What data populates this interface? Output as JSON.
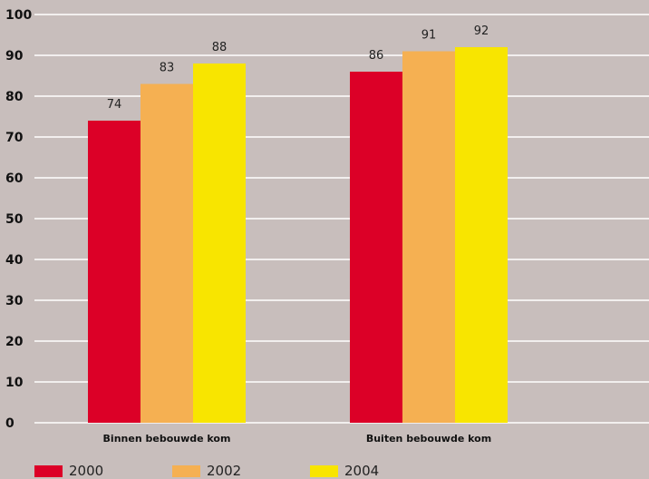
{
  "chart_data": {
    "type": "bar",
    "categories": [
      "Binnen bebouwde kom",
      "Buiten bebouwde kom"
    ],
    "series": [
      {
        "name": "2000",
        "values": [
          74,
          86
        ],
        "color": "#dc0027"
      },
      {
        "name": "2002",
        "values": [
          83,
          91
        ],
        "color": "#f5b052"
      },
      {
        "name": "2004",
        "values": [
          88,
          92
        ],
        "color": "#f8e500"
      }
    ],
    "ylim": [
      0,
      100
    ],
    "yticks": [
      "0",
      "10",
      "20",
      "30",
      "40",
      "50",
      "60",
      "70",
      "80",
      "90",
      "100"
    ],
    "title": "",
    "xlabel": "",
    "ylabel": "",
    "grid": true,
    "legend_position": "bottom"
  }
}
